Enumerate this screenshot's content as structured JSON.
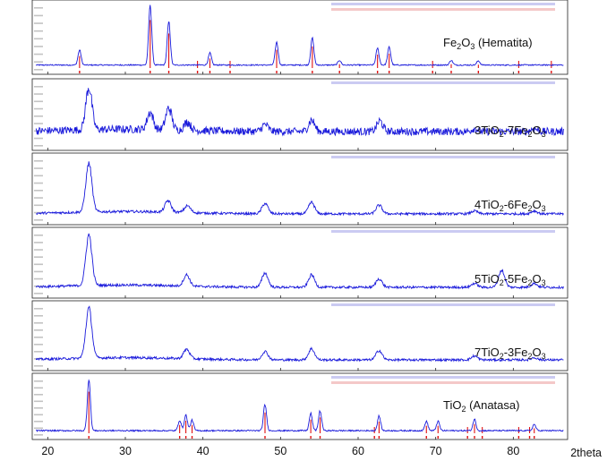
{
  "chart_data": {
    "type": "line",
    "xlabel": "2theta",
    "ylabel": "",
    "xlim": [
      18,
      87
    ],
    "x_ticks": [
      20,
      30,
      40,
      50,
      60,
      70,
      80
    ],
    "grid": false,
    "colors": {
      "pattern": "#1a1adb",
      "reference": "#e01010",
      "frame": "#222222"
    },
    "panels": [
      {
        "name": "Fe2O3 (Hematita)",
        "label_main": "Fe",
        "label_sub1": "2",
        "label_mid": "O",
        "label_sub2": "3",
        "label_tail": " (Hematita)",
        "background": 0.05,
        "noise": 0.015,
        "peaks": [
          [
            24.1,
            0.25
          ],
          [
            33.2,
            1.0
          ],
          [
            35.6,
            0.72
          ],
          [
            40.9,
            0.2
          ],
          [
            49.5,
            0.38
          ],
          [
            54.1,
            0.45
          ],
          [
            57.6,
            0.08
          ],
          [
            62.5,
            0.28
          ],
          [
            64.0,
            0.3
          ],
          [
            72.0,
            0.08
          ],
          [
            75.5,
            0.07
          ]
        ],
        "reference_lines": [
          24.1,
          33.2,
          35.6,
          39.3,
          40.9,
          43.5,
          49.5,
          54.1,
          57.6,
          62.5,
          64.0,
          69.6,
          72.0,
          75.5,
          80.7,
          84.9
        ]
      },
      {
        "name": "3TiO2-7Fe2O3",
        "label_main": "3TiO",
        "label_sub1": "2",
        "label_mid": "-7Fe",
        "label_sub2": "2",
        "label_tail": "O",
        "label_sub3": "3",
        "background": 0.22,
        "noise": 0.08,
        "peaks": [
          [
            25.3,
            0.75
          ],
          [
            33.2,
            0.3
          ],
          [
            35.6,
            0.38
          ],
          [
            38.0,
            0.15
          ],
          [
            48.0,
            0.12
          ],
          [
            54.0,
            0.2
          ],
          [
            62.8,
            0.18
          ],
          [
            75.0,
            0.05
          ],
          [
            82.7,
            0.05
          ]
        ],
        "reference_lines": []
      },
      {
        "name": "4TiO2-6Fe2O3",
        "label_main": "4TiO",
        "label_sub1": "2",
        "label_mid": "-6Fe",
        "label_sub2": "2",
        "label_tail": "O",
        "label_sub3": "3",
        "background": 0.08,
        "noise": 0.03,
        "peaks": [
          [
            25.3,
            0.85
          ],
          [
            35.5,
            0.2
          ],
          [
            38.0,
            0.12
          ],
          [
            48.0,
            0.18
          ],
          [
            54.0,
            0.2
          ],
          [
            62.7,
            0.15
          ],
          [
            75.0,
            0.05
          ],
          [
            82.7,
            0.05
          ]
        ],
        "reference_lines": []
      },
      {
        "name": "5TiO2-5Fe2O3",
        "label_main": "5TiO",
        "label_sub1": "2",
        "label_mid": "-5Fe",
        "label_sub2": "2",
        "label_tail": "O",
        "label_sub3": "3",
        "background": 0.08,
        "noise": 0.03,
        "peaks": [
          [
            25.3,
            0.9
          ],
          [
            37.9,
            0.2
          ],
          [
            48.0,
            0.25
          ],
          [
            54.0,
            0.22
          ],
          [
            62.7,
            0.15
          ],
          [
            75.0,
            0.07
          ],
          [
            78.5,
            0.3
          ],
          [
            82.7,
            0.07
          ]
        ],
        "reference_lines": []
      },
      {
        "name": "7TiO2-3Fe2O3",
        "label_main": "7TiO",
        "label_sub1": "2",
        "label_mid": "-3Fe",
        "label_sub2": "2",
        "label_tail": "O",
        "label_sub3": "3",
        "background": 0.08,
        "noise": 0.03,
        "peaks": [
          [
            25.3,
            0.9
          ],
          [
            37.9,
            0.17
          ],
          [
            48.0,
            0.15
          ],
          [
            54.0,
            0.2
          ],
          [
            62.7,
            0.17
          ],
          [
            75.0,
            0.07
          ],
          [
            82.7,
            0.04
          ]
        ],
        "reference_lines": []
      },
      {
        "name": "TiO2 (Anatasa)",
        "label_main": "TiO",
        "label_sub1": "2",
        "label_mid": " (Anatasa)",
        "label_sub2": "",
        "label_tail": "",
        "background": 0.05,
        "noise": 0.02,
        "peaks": [
          [
            25.3,
            1.0
          ],
          [
            37.0,
            0.2
          ],
          [
            37.8,
            0.3
          ],
          [
            38.6,
            0.2
          ],
          [
            48.0,
            0.5
          ],
          [
            53.9,
            0.33
          ],
          [
            55.1,
            0.38
          ],
          [
            62.7,
            0.28
          ],
          [
            68.8,
            0.18
          ],
          [
            70.3,
            0.18
          ],
          [
            75.0,
            0.22
          ],
          [
            82.7,
            0.12
          ]
        ],
        "reference_lines": [
          25.3,
          37.0,
          37.8,
          38.6,
          48.0,
          53.9,
          55.1,
          62.1,
          62.7,
          68.8,
          70.3,
          74.1,
          75.0,
          76.0,
          80.7,
          82.1,
          82.7
        ]
      }
    ]
  }
}
